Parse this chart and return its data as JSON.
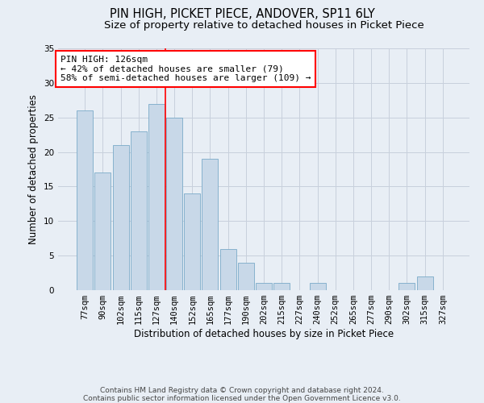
{
  "title1": "PIN HIGH, PICKET PIECE, ANDOVER, SP11 6LY",
  "title2": "Size of property relative to detached houses in Picket Piece",
  "xlabel": "Distribution of detached houses by size in Picket Piece",
  "ylabel": "Number of detached properties",
  "categories": [
    "77sqm",
    "90sqm",
    "102sqm",
    "115sqm",
    "127sqm",
    "140sqm",
    "152sqm",
    "165sqm",
    "177sqm",
    "190sqm",
    "202sqm",
    "215sqm",
    "227sqm",
    "240sqm",
    "252sqm",
    "265sqm",
    "277sqm",
    "290sqm",
    "302sqm",
    "315sqm",
    "327sqm"
  ],
  "values": [
    26,
    17,
    21,
    23,
    27,
    25,
    14,
    19,
    6,
    4,
    1,
    1,
    0,
    1,
    0,
    0,
    0,
    0,
    1,
    2,
    0
  ],
  "bar_color": "#c8d8e8",
  "bar_edge_color": "#7aaac8",
  "grid_color": "#c8d0dc",
  "background_color": "#e8eef5",
  "annotation_box_text": "PIN HIGH: 126sqm\n← 42% of detached houses are smaller (79)\n58% of semi-detached houses are larger (109) →",
  "annotation_box_color": "white",
  "annotation_box_edge_color": "red",
  "vline_x_index": 4.5,
  "vline_color": "red",
  "ylim": [
    0,
    35
  ],
  "yticks": [
    0,
    5,
    10,
    15,
    20,
    25,
    30,
    35
  ],
  "footer": "Contains HM Land Registry data © Crown copyright and database right 2024.\nContains public sector information licensed under the Open Government Licence v3.0.",
  "title1_fontsize": 10.5,
  "title2_fontsize": 9.5,
  "xlabel_fontsize": 8.5,
  "ylabel_fontsize": 8.5,
  "tick_fontsize": 7.5,
  "annotation_fontsize": 8,
  "footer_fontsize": 6.5
}
